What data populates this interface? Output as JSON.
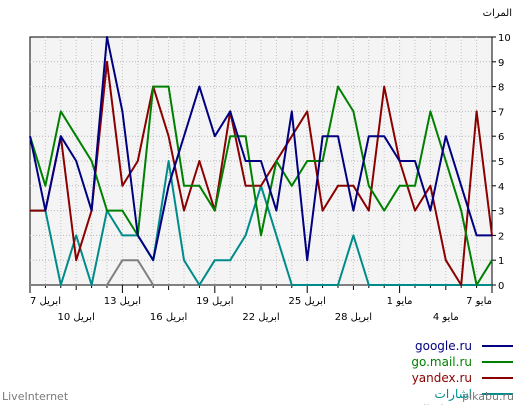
{
  "chart_data": {
    "type": "line",
    "ylabel": "المرات",
    "ylim": [
      0,
      10
    ],
    "yticks": [
      "0",
      "1",
      "2",
      "3",
      "4",
      "5",
      "6",
      "7",
      "8",
      "9",
      "10"
    ],
    "grid": true,
    "legend_position": "bottom-right",
    "x": [
      "2024-05-07",
      "2024-05-06",
      "2024-05-05",
      "2024-05-04",
      "2024-05-03",
      "2024-05-02",
      "2024-05-01",
      "2024-04-30",
      "2024-04-29",
      "2024-04-28",
      "2024-04-27",
      "2024-04-26",
      "2024-04-25",
      "2024-04-24",
      "2024-04-23",
      "2024-04-22",
      "2024-04-21",
      "2024-04-20",
      "2024-04-19",
      "2024-04-18",
      "2024-04-17",
      "2024-04-16",
      "2024-04-15",
      "2024-04-14",
      "2024-04-13",
      "2024-04-12",
      "2024-04-11",
      "2024-04-10",
      "2024-04-09",
      "2024-04-08",
      "2024-04-07"
    ],
    "xticks_upper": [
      "7 مايو",
      "1 مايو",
      "25 ابريل",
      "19 ابريل",
      "13 ابريل",
      "7 ابريل"
    ],
    "xticks_lower": [
      "4 مايو",
      "28 ابريل",
      "22 ابريل",
      "16 ابريل",
      "10 ابريل"
    ],
    "series": [
      {
        "name": "google.ru",
        "color": "#000080",
        "values": [
          2,
          2,
          4,
          6,
          3,
          5,
          5,
          6,
          6,
          3,
          6,
          6,
          1,
          7,
          3,
          5,
          5,
          7,
          6,
          8,
          6,
          4,
          1,
          2,
          7,
          10,
          3,
          5,
          6,
          3,
          6
        ]
      },
      {
        "name": "go.mail.ru",
        "color": "#008000",
        "values": [
          1,
          0,
          3,
          5,
          7,
          4,
          4,
          3,
          4,
          7,
          8,
          5,
          5,
          4,
          5,
          2,
          6,
          6,
          3,
          4,
          4,
          8,
          8,
          2,
          3,
          3,
          5,
          6,
          7,
          4,
          6
        ]
      },
      {
        "name": "yandex.ru",
        "color": "#8b0000",
        "values": [
          2,
          7,
          0,
          1,
          4,
          3,
          5,
          8,
          3,
          4,
          4,
          3,
          7,
          6,
          5,
          4,
          4,
          7,
          3,
          5,
          3,
          6,
          8,
          5,
          4,
          9,
          3,
          1,
          6,
          3,
          3
        ]
      },
      {
        "name": "اشارات",
        "color": "#008b8b",
        "values": [
          0,
          0,
          0,
          0,
          0,
          0,
          0,
          0,
          0,
          2,
          0,
          0,
          0,
          0,
          2,
          4,
          2,
          1,
          1,
          0,
          1,
          5,
          1,
          2,
          2,
          3,
          0,
          2,
          0,
          3,
          3
        ]
      },
      {
        "name": "pikabu.ru",
        "color": "#808080",
        "values": [
          0,
          0,
          0,
          0,
          0,
          0,
          0,
          0,
          0,
          0,
          0,
          0,
          0,
          0,
          0,
          0,
          0,
          0,
          0,
          0,
          0,
          0,
          0,
          1,
          1,
          0,
          0,
          0,
          0,
          0,
          0
        ]
      }
    ]
  },
  "footer": {
    "left": "LiveInternet",
    "right": "pikabu.ru"
  }
}
